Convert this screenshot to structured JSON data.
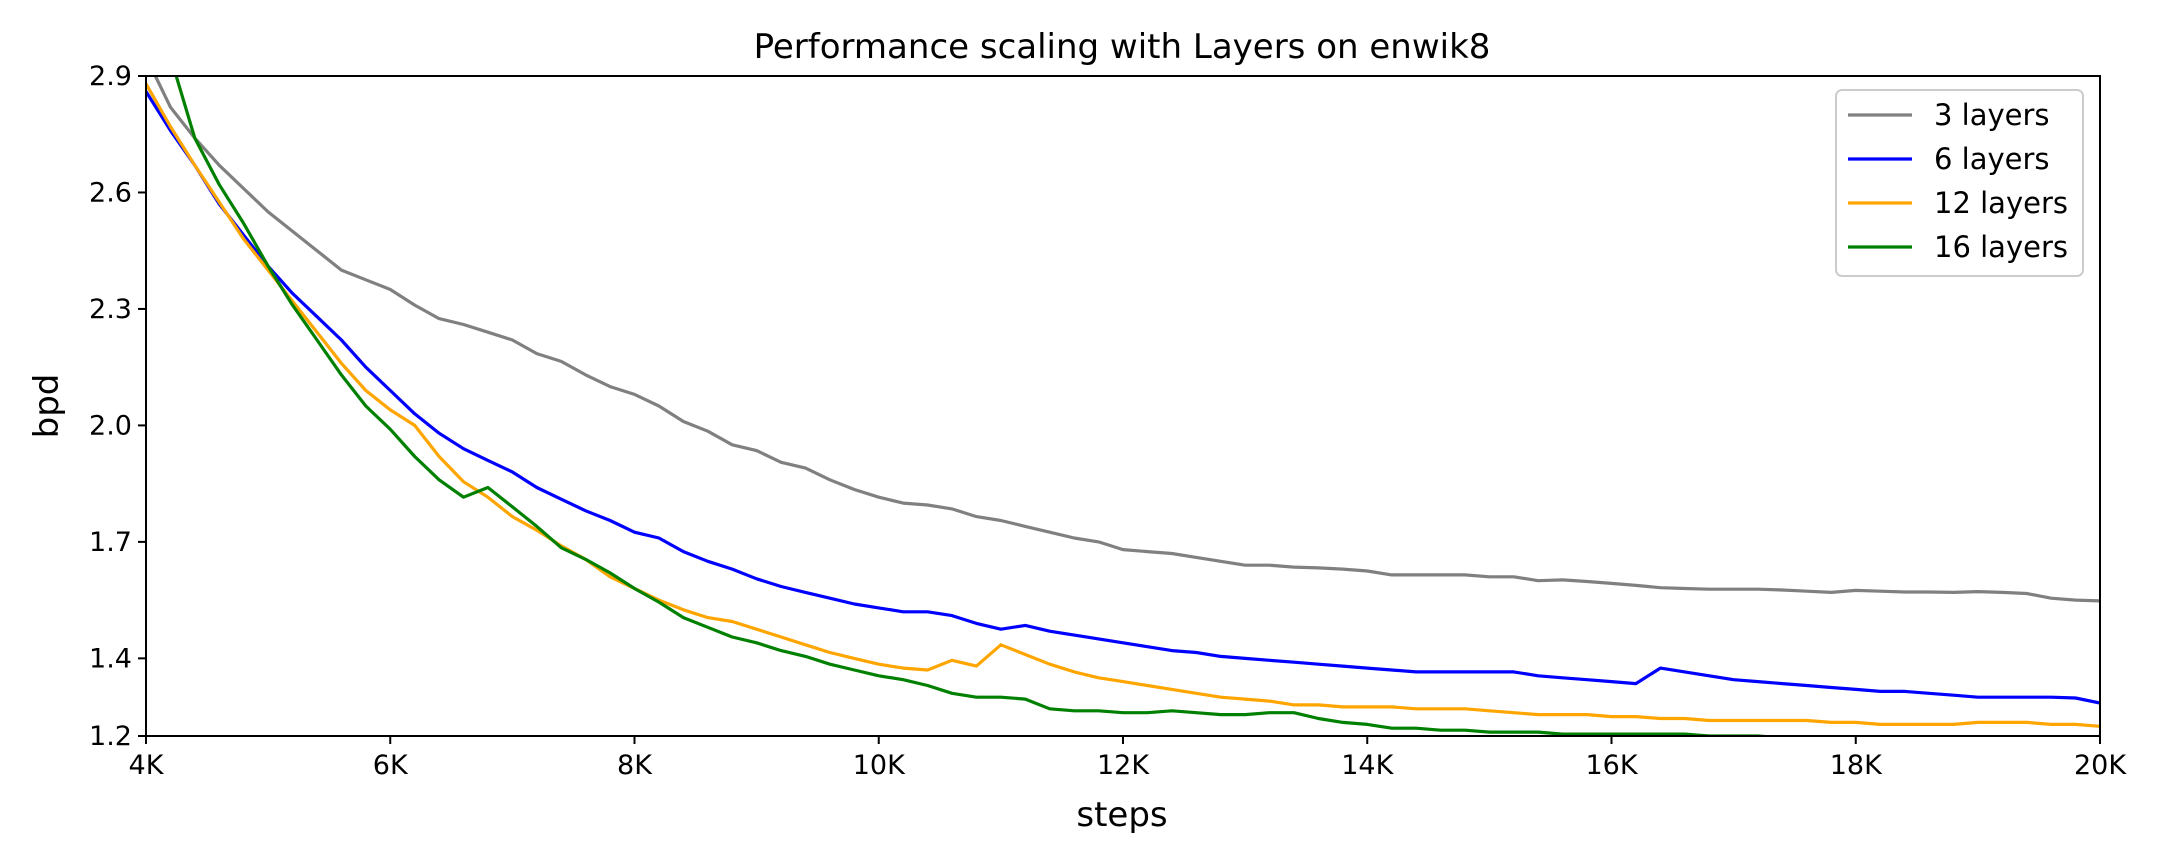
{
  "chart_data": {
    "type": "line",
    "title": "Performance scaling with Layers on enwik8",
    "xlabel": "steps",
    "ylabel": "bpd",
    "xlim": [
      4000,
      20000
    ],
    "ylim": [
      1.2,
      2.9
    ],
    "xticks": [
      4000,
      6000,
      8000,
      10000,
      12000,
      14000,
      16000,
      18000,
      20000
    ],
    "xtick_labels": [
      "4K",
      "6K",
      "8K",
      "10K",
      "12K",
      "14K",
      "16K",
      "18K",
      "20K"
    ],
    "yticks": [
      1.2,
      1.4,
      1.7,
      2.0,
      2.3,
      2.6,
      2.9
    ],
    "ytick_labels": [
      "1.2",
      "1.4",
      "1.7",
      "2.0",
      "2.3",
      "2.6",
      "2.9"
    ],
    "grid": false,
    "legend_position": "top-right",
    "x": [
      4000,
      4200,
      4400,
      4600,
      4800,
      5000,
      5200,
      5400,
      5600,
      5800,
      6000,
      6200,
      6400,
      6600,
      6800,
      7000,
      7200,
      7400,
      7600,
      7800,
      8000,
      8200,
      8400,
      8600,
      8800,
      9000,
      9200,
      9400,
      9600,
      9800,
      10000,
      10200,
      10400,
      10600,
      10800,
      11000,
      11200,
      11400,
      11600,
      11800,
      12000,
      12200,
      12400,
      12600,
      12800,
      13000,
      13200,
      13400,
      13600,
      13800,
      14000,
      14200,
      14400,
      14600,
      14800,
      15000,
      15200,
      15400,
      15600,
      15800,
      16000,
      16200,
      16400,
      16600,
      16800,
      17000,
      17200,
      17400,
      17600,
      17800,
      18000,
      18200,
      18400,
      18600,
      18800,
      19000,
      19200,
      19400,
      19600,
      19800,
      20000
    ],
    "series": [
      {
        "name": "3 layers",
        "color": "#808080",
        "values": [
          2.95,
          2.82,
          2.74,
          2.67,
          2.61,
          2.55,
          2.5,
          2.45,
          2.4,
          2.375,
          2.35,
          2.31,
          2.275,
          2.26,
          2.24,
          2.22,
          2.185,
          2.165,
          2.13,
          2.1,
          2.08,
          2.05,
          2.01,
          1.985,
          1.95,
          1.935,
          1.905,
          1.89,
          1.86,
          1.835,
          1.815,
          1.8,
          1.795,
          1.785,
          1.765,
          1.755,
          1.74,
          1.725,
          1.71,
          1.7,
          1.68,
          1.675,
          1.67,
          1.66,
          1.65,
          1.64,
          1.64,
          1.635,
          1.633,
          1.63,
          1.625,
          1.615,
          1.615,
          1.615,
          1.615,
          1.61,
          1.61,
          1.6,
          1.602,
          1.598,
          1.593,
          1.588,
          1.582,
          1.58,
          1.578,
          1.578,
          1.578,
          1.576,
          1.573,
          1.57,
          1.575,
          1.573,
          1.571,
          1.571,
          1.57,
          1.572,
          1.57,
          1.567,
          1.555,
          1.55,
          1.548
        ]
      },
      {
        "name": "6 layers",
        "color": "#0000ff",
        "values": [
          2.86,
          2.76,
          2.67,
          2.57,
          2.49,
          2.41,
          2.34,
          2.28,
          2.22,
          2.15,
          2.09,
          2.03,
          1.98,
          1.94,
          1.91,
          1.88,
          1.84,
          1.81,
          1.78,
          1.755,
          1.725,
          1.71,
          1.675,
          1.65,
          1.63,
          1.605,
          1.585,
          1.57,
          1.555,
          1.54,
          1.53,
          1.52,
          1.52,
          1.51,
          1.49,
          1.475,
          1.485,
          1.47,
          1.46,
          1.45,
          1.44,
          1.43,
          1.42,
          1.415,
          1.405,
          1.4,
          1.395,
          1.39,
          1.385,
          1.38,
          1.375,
          1.37,
          1.365,
          1.365,
          1.365,
          1.365,
          1.365,
          1.355,
          1.35,
          1.345,
          1.34,
          1.335,
          1.375,
          1.365,
          1.355,
          1.345,
          1.34,
          1.335,
          1.33,
          1.325,
          1.32,
          1.315,
          1.315,
          1.31,
          1.305,
          1.3,
          1.3,
          1.3,
          1.3,
          1.298,
          1.285
        ]
      },
      {
        "name": "12 layers",
        "color": "#ffa500",
        "values": [
          2.88,
          2.77,
          2.67,
          2.575,
          2.48,
          2.4,
          2.32,
          2.24,
          2.16,
          2.09,
          2.04,
          2.0,
          1.92,
          1.855,
          1.815,
          1.765,
          1.73,
          1.69,
          1.655,
          1.61,
          1.58,
          1.55,
          1.525,
          1.505,
          1.495,
          1.475,
          1.455,
          1.435,
          1.415,
          1.4,
          1.385,
          1.375,
          1.37,
          1.395,
          1.38,
          1.435,
          1.41,
          1.385,
          1.365,
          1.35,
          1.34,
          1.33,
          1.32,
          1.31,
          1.3,
          1.295,
          1.29,
          1.28,
          1.28,
          1.275,
          1.275,
          1.275,
          1.27,
          1.27,
          1.27,
          1.265,
          1.26,
          1.255,
          1.255,
          1.255,
          1.25,
          1.25,
          1.245,
          1.245,
          1.24,
          1.24,
          1.24,
          1.24,
          1.24,
          1.235,
          1.235,
          1.23,
          1.23,
          1.23,
          1.23,
          1.235,
          1.235,
          1.235,
          1.23,
          1.23,
          1.225
        ]
      },
      {
        "name": "16 layers",
        "color": "#008000",
        "values": [
          3.0,
          2.95,
          2.74,
          2.62,
          2.52,
          2.41,
          2.31,
          2.22,
          2.13,
          2.05,
          1.99,
          1.92,
          1.86,
          1.815,
          1.84,
          1.79,
          1.74,
          1.685,
          1.655,
          1.62,
          1.58,
          1.545,
          1.505,
          1.48,
          1.455,
          1.44,
          1.42,
          1.405,
          1.385,
          1.37,
          1.355,
          1.345,
          1.33,
          1.31,
          1.3,
          1.3,
          1.295,
          1.27,
          1.265,
          1.265,
          1.26,
          1.26,
          1.265,
          1.26,
          1.255,
          1.255,
          1.26,
          1.26,
          1.245,
          1.235,
          1.23,
          1.22,
          1.22,
          1.215,
          1.215,
          1.21,
          1.21,
          1.21,
          1.205,
          1.205,
          1.205,
          1.205,
          1.205,
          1.205,
          1.2,
          1.2,
          1.2,
          1.195,
          1.19,
          1.19,
          1.19,
          1.19,
          1.19,
          1.19,
          1.19,
          1.185,
          1.185,
          1.185,
          1.18,
          1.18,
          1.2
        ]
      }
    ]
  }
}
